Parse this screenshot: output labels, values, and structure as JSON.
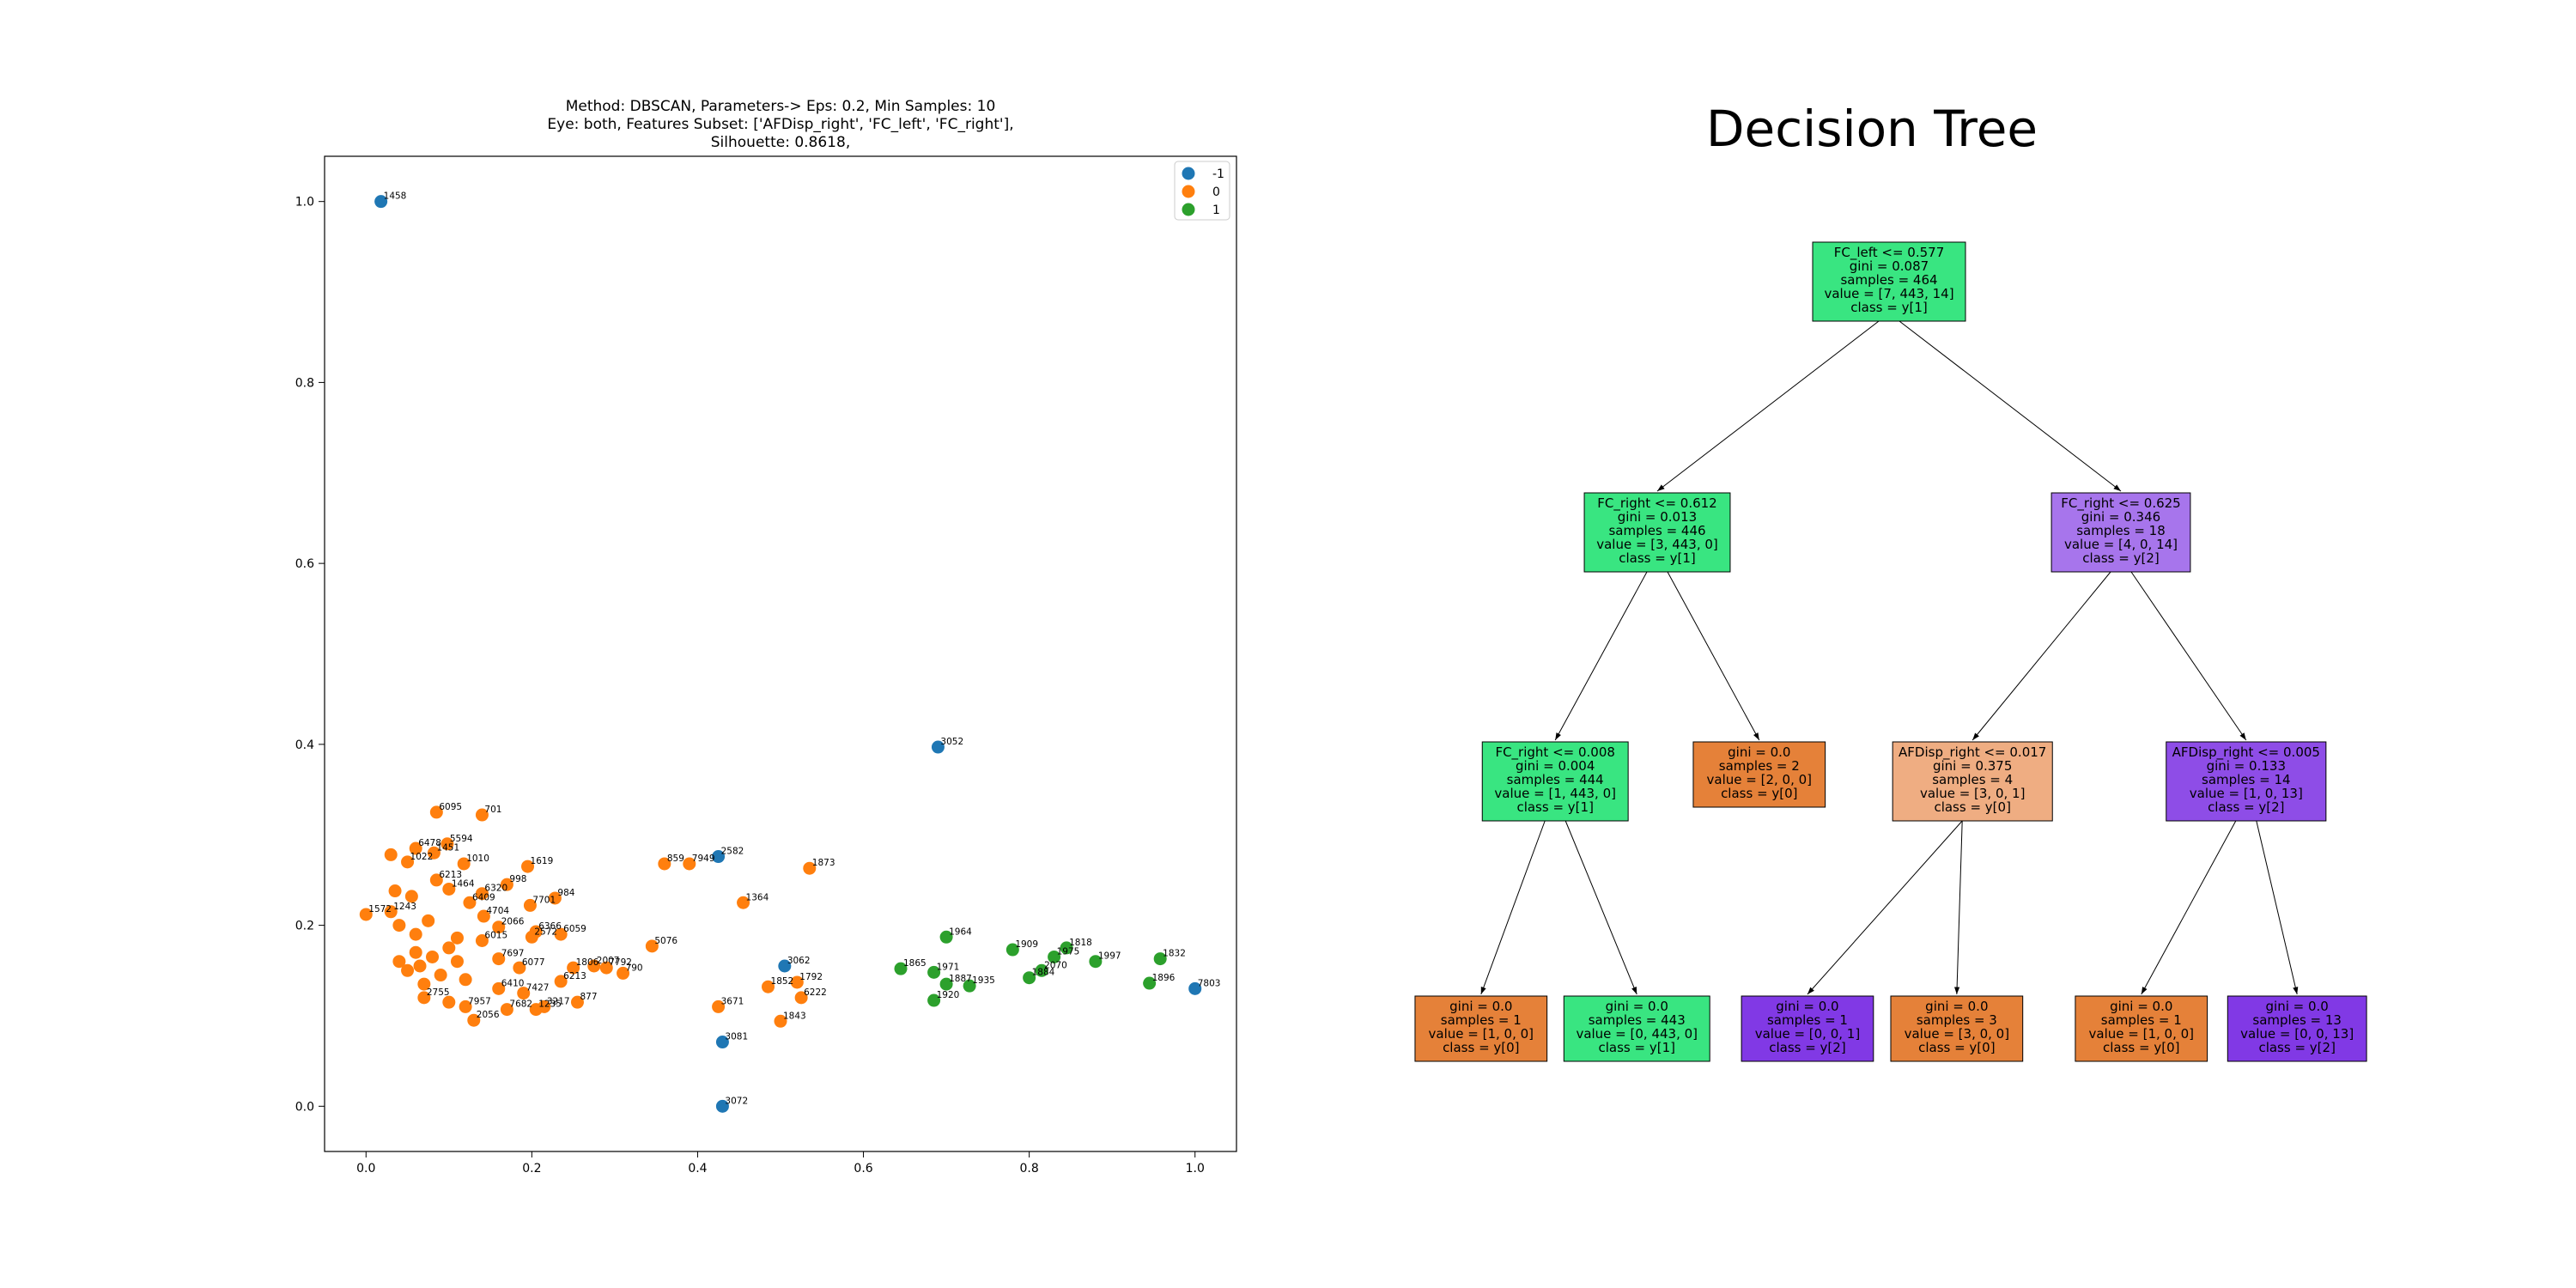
{
  "colors": {
    "cluster_-1": "#1f77b4",
    "cluster_0": "#ff7f0e",
    "cluster_1": "#2ca02c",
    "class_y0": "#e58139",
    "class_y1": "#39e581",
    "class_y2": "#8139e5",
    "class_y0_light": "#efad82",
    "class_y2_light": "#a775ec",
    "class_y1_light": "#39e57f"
  },
  "chart_data": [
    {
      "type": "scatter",
      "title_lines": [
        "Method: DBSCAN, Parameters-> Eps: 0.2, Min Samples: 10",
        "Eye: both, Features Subset: ['AFDisp_right', 'FC_left', 'FC_right'],",
        "Silhouette: 0.8618,"
      ],
      "xlim": [
        -0.05,
        1.05
      ],
      "ylim": [
        -0.05,
        1.05
      ],
      "xticks": [
        "0.0",
        "0.2",
        "0.4",
        "0.6",
        "0.8",
        "1.0"
      ],
      "yticks": [
        "0.0",
        "0.2",
        "0.4",
        "0.6",
        "0.8",
        "1.0"
      ],
      "legend_position": "top-right",
      "legend": [
        {
          "label": "-1",
          "cluster": "-1"
        },
        {
          "label": "0",
          "cluster": "0"
        },
        {
          "label": "1",
          "cluster": "1"
        }
      ],
      "points": [
        {
          "x": 0.018,
          "y": 1.0,
          "cluster": "-1",
          "label": "1458"
        },
        {
          "x": 0.69,
          "y": 0.397,
          "cluster": "-1",
          "label": "3052"
        },
        {
          "x": 0.425,
          "y": 0.276,
          "cluster": "-1",
          "label": "2582"
        },
        {
          "x": 0.505,
          "y": 0.155,
          "cluster": "-1",
          "label": "3062"
        },
        {
          "x": 1.0,
          "y": 0.13,
          "cluster": "-1",
          "label": "7803"
        },
        {
          "x": 0.43,
          "y": 0.071,
          "cluster": "-1",
          "label": "3081"
        },
        {
          "x": 0.43,
          "y": 0.0,
          "cluster": "-1",
          "label": "3072"
        },
        {
          "x": 0.085,
          "y": 0.325,
          "cluster": "0",
          "label": "6095"
        },
        {
          "x": 0.14,
          "y": 0.322,
          "cluster": "0",
          "label": "701"
        },
        {
          "x": 0.098,
          "y": 0.29,
          "cluster": "0",
          "label": "5594"
        },
        {
          "x": 0.082,
          "y": 0.28,
          "cluster": "0",
          "label": "1451"
        },
        {
          "x": 0.06,
          "y": 0.285,
          "cluster": "0",
          "label": "6478"
        },
        {
          "x": 0.03,
          "y": 0.278,
          "cluster": "0",
          "label": ""
        },
        {
          "x": 0.05,
          "y": 0.27,
          "cluster": "0",
          "label": "1022"
        },
        {
          "x": 0.118,
          "y": 0.268,
          "cluster": "0",
          "label": "1010"
        },
        {
          "x": 0.195,
          "y": 0.265,
          "cluster": "0",
          "label": "1619"
        },
        {
          "x": 0.085,
          "y": 0.25,
          "cluster": "0",
          "label": "6213"
        },
        {
          "x": 0.17,
          "y": 0.245,
          "cluster": "0",
          "label": "998"
        },
        {
          "x": 0.1,
          "y": 0.24,
          "cluster": "0",
          "label": "1464"
        },
        {
          "x": 0.035,
          "y": 0.238,
          "cluster": "0",
          "label": ""
        },
        {
          "x": 0.14,
          "y": 0.235,
          "cluster": "0",
          "label": "6320"
        },
        {
          "x": 0.228,
          "y": 0.23,
          "cluster": "0",
          "label": "984"
        },
        {
          "x": 0.055,
          "y": 0.232,
          "cluster": "0",
          "label": ""
        },
        {
          "x": 0.125,
          "y": 0.225,
          "cluster": "0",
          "label": "6409"
        },
        {
          "x": 0.198,
          "y": 0.222,
          "cluster": "0",
          "label": "7701"
        },
        {
          "x": 0.0,
          "y": 0.212,
          "cluster": "0",
          "label": "1572"
        },
        {
          "x": 0.03,
          "y": 0.215,
          "cluster": "0",
          "label": "1243"
        },
        {
          "x": 0.142,
          "y": 0.21,
          "cluster": "0",
          "label": "4704"
        },
        {
          "x": 0.075,
          "y": 0.205,
          "cluster": "0",
          "label": ""
        },
        {
          "x": 0.16,
          "y": 0.198,
          "cluster": "0",
          "label": "2066"
        },
        {
          "x": 0.205,
          "y": 0.193,
          "cluster": "0",
          "label": "6366"
        },
        {
          "x": 0.235,
          "y": 0.19,
          "cluster": "0",
          "label": "6059"
        },
        {
          "x": 0.2,
          "y": 0.187,
          "cluster": "0",
          "label": "2572"
        },
        {
          "x": 0.14,
          "y": 0.183,
          "cluster": "0",
          "label": "6015"
        },
        {
          "x": 0.11,
          "y": 0.186,
          "cluster": "0",
          "label": ""
        },
        {
          "x": 0.345,
          "y": 0.177,
          "cluster": "0",
          "label": "5076"
        },
        {
          "x": 0.06,
          "y": 0.19,
          "cluster": "0",
          "label": ""
        },
        {
          "x": 0.04,
          "y": 0.2,
          "cluster": "0",
          "label": ""
        },
        {
          "x": 0.16,
          "y": 0.163,
          "cluster": "0",
          "label": "7697"
        },
        {
          "x": 0.185,
          "y": 0.153,
          "cluster": "0",
          "label": "6077"
        },
        {
          "x": 0.25,
          "y": 0.153,
          "cluster": "0",
          "label": "1806"
        },
        {
          "x": 0.275,
          "y": 0.155,
          "cluster": "0",
          "label": "2007"
        },
        {
          "x": 0.29,
          "y": 0.153,
          "cluster": "0",
          "label": "7792"
        },
        {
          "x": 0.31,
          "y": 0.147,
          "cluster": "0",
          "label": "790"
        },
        {
          "x": 0.235,
          "y": 0.138,
          "cluster": "0",
          "label": "6213"
        },
        {
          "x": 0.19,
          "y": 0.125,
          "cluster": "0",
          "label": "7427"
        },
        {
          "x": 0.16,
          "y": 0.13,
          "cluster": "0",
          "label": "6410"
        },
        {
          "x": 0.255,
          "y": 0.115,
          "cluster": "0",
          "label": "877"
        },
        {
          "x": 0.215,
          "y": 0.11,
          "cluster": "0",
          "label": "3217"
        },
        {
          "x": 0.205,
          "y": 0.107,
          "cluster": "0",
          "label": "1235"
        },
        {
          "x": 0.17,
          "y": 0.107,
          "cluster": "0",
          "label": "7682"
        },
        {
          "x": 0.12,
          "y": 0.11,
          "cluster": "0",
          "label": "7957"
        },
        {
          "x": 0.13,
          "y": 0.095,
          "cluster": "0",
          "label": "2056"
        },
        {
          "x": 0.07,
          "y": 0.12,
          "cluster": "0",
          "label": "2755"
        },
        {
          "x": 0.1,
          "y": 0.115,
          "cluster": "0",
          "label": ""
        },
        {
          "x": 0.36,
          "y": 0.268,
          "cluster": "0",
          "label": "859"
        },
        {
          "x": 0.39,
          "y": 0.268,
          "cluster": "0",
          "label": "7949"
        },
        {
          "x": 0.535,
          "y": 0.263,
          "cluster": "0",
          "label": "1873"
        },
        {
          "x": 0.455,
          "y": 0.225,
          "cluster": "0",
          "label": "1364"
        },
        {
          "x": 0.52,
          "y": 0.137,
          "cluster": "0",
          "label": "1792"
        },
        {
          "x": 0.485,
          "y": 0.132,
          "cluster": "0",
          "label": "1852"
        },
        {
          "x": 0.525,
          "y": 0.12,
          "cluster": "0",
          "label": "6222"
        },
        {
          "x": 0.425,
          "y": 0.11,
          "cluster": "0",
          "label": "3671"
        },
        {
          "x": 0.5,
          "y": 0.094,
          "cluster": "0",
          "label": "1843"
        },
        {
          "x": 0.06,
          "y": 0.17,
          "cluster": "0",
          "label": ""
        },
        {
          "x": 0.08,
          "y": 0.165,
          "cluster": "0",
          "label": ""
        },
        {
          "x": 0.05,
          "y": 0.15,
          "cluster": "0",
          "label": ""
        },
        {
          "x": 0.09,
          "y": 0.145,
          "cluster": "0",
          "label": ""
        },
        {
          "x": 0.11,
          "y": 0.16,
          "cluster": "0",
          "label": ""
        },
        {
          "x": 0.07,
          "y": 0.135,
          "cluster": "0",
          "label": ""
        },
        {
          "x": 0.04,
          "y": 0.16,
          "cluster": "0",
          "label": ""
        },
        {
          "x": 0.1,
          "y": 0.175,
          "cluster": "0",
          "label": ""
        },
        {
          "x": 0.12,
          "y": 0.14,
          "cluster": "0",
          "label": ""
        },
        {
          "x": 0.065,
          "y": 0.155,
          "cluster": "0",
          "label": ""
        },
        {
          "x": 0.7,
          "y": 0.187,
          "cluster": "1",
          "label": "1964"
        },
        {
          "x": 0.78,
          "y": 0.173,
          "cluster": "1",
          "label": "1909"
        },
        {
          "x": 0.845,
          "y": 0.175,
          "cluster": "1",
          "label": "1818"
        },
        {
          "x": 0.83,
          "y": 0.165,
          "cluster": "1",
          "label": "1975"
        },
        {
          "x": 0.88,
          "y": 0.16,
          "cluster": "1",
          "label": "1997"
        },
        {
          "x": 0.958,
          "y": 0.163,
          "cluster": "1",
          "label": "1832"
        },
        {
          "x": 0.645,
          "y": 0.152,
          "cluster": "1",
          "label": "1865"
        },
        {
          "x": 0.685,
          "y": 0.148,
          "cluster": "1",
          "label": "1971"
        },
        {
          "x": 0.815,
          "y": 0.15,
          "cluster": "1",
          "label": "2070"
        },
        {
          "x": 0.8,
          "y": 0.142,
          "cluster": "1",
          "label": "1884"
        },
        {
          "x": 0.7,
          "y": 0.135,
          "cluster": "1",
          "label": "1887"
        },
        {
          "x": 0.728,
          "y": 0.133,
          "cluster": "1",
          "label": "1935"
        },
        {
          "x": 0.945,
          "y": 0.136,
          "cluster": "1",
          "label": "1896"
        },
        {
          "x": 0.685,
          "y": 0.117,
          "cluster": "1",
          "label": "1920"
        }
      ]
    },
    {
      "type": "tree",
      "title": "Decision Tree",
      "nodes": [
        {
          "id": "n0",
          "depth": 0,
          "col": 0.5,
          "lines": [
            "FC_left <= 0.577",
            "gini = 0.087",
            "samples = 464",
            "value = [7, 443, 14]",
            "class = y[1]"
          ],
          "color": "#39e581",
          "children": [
            "n1",
            "n2"
          ]
        },
        {
          "id": "n1",
          "depth": 1,
          "col": 0.25,
          "lines": [
            "FC_right <= 0.612",
            "gini = 0.013",
            "samples = 446",
            "value = [3, 443, 0]",
            "class = y[1]"
          ],
          "color": "#39e581",
          "children": [
            "n3",
            "n4"
          ]
        },
        {
          "id": "n2",
          "depth": 1,
          "col": 0.75,
          "lines": [
            "FC_right <= 0.625",
            "gini = 0.346",
            "samples = 18",
            "value = [4, 0, 14]",
            "class = y[2]"
          ],
          "color": "#a775ec",
          "children": [
            "n5",
            "n6"
          ]
        },
        {
          "id": "n3",
          "depth": 2,
          "col": 0.14,
          "lines": [
            "FC_right <= 0.008",
            "gini = 0.004",
            "samples = 444",
            "value = [1, 443, 0]",
            "class = y[1]"
          ],
          "color": "#39e581",
          "children": [
            "n7",
            "n8"
          ]
        },
        {
          "id": "n4",
          "depth": 2,
          "col": 0.36,
          "lines": [
            "gini = 0.0",
            "samples = 2",
            "value = [2, 0, 0]",
            "class = y[0]"
          ],
          "color": "#e58139",
          "children": []
        },
        {
          "id": "n5",
          "depth": 2,
          "col": 0.59,
          "lines": [
            "AFDisp_right <= 0.017",
            "gini = 0.375",
            "samples = 4",
            "value = [3, 0, 1]",
            "class = y[0]"
          ],
          "color": "#efad82",
          "children": [
            "n9",
            "n10"
          ]
        },
        {
          "id": "n6",
          "depth": 2,
          "col": 0.885,
          "lines": [
            "AFDisp_right <= 0.005",
            "gini = 0.133",
            "samples = 14",
            "value = [1, 0, 13]",
            "class = y[2]"
          ],
          "color": "#8e4de7",
          "children": [
            "n11",
            "n12"
          ]
        },
        {
          "id": "n7",
          "depth": 3,
          "col": 0.06,
          "lines": [
            "gini = 0.0",
            "samples = 1",
            "value = [1, 0, 0]",
            "class = y[0]"
          ],
          "color": "#e58139",
          "children": []
        },
        {
          "id": "n8",
          "depth": 3,
          "col": 0.228,
          "lines": [
            "gini = 0.0",
            "samples = 443",
            "value = [0, 443, 0]",
            "class = y[1]"
          ],
          "color": "#39e581",
          "children": []
        },
        {
          "id": "n9",
          "depth": 3,
          "col": 0.412,
          "lines": [
            "gini = 0.0",
            "samples = 1",
            "value = [0, 0, 1]",
            "class = y[2]"
          ],
          "color": "#8139e5",
          "children": []
        },
        {
          "id": "n10",
          "depth": 3,
          "col": 0.573,
          "lines": [
            "gini = 0.0",
            "samples = 3",
            "value = [3, 0, 0]",
            "class = y[0]"
          ],
          "color": "#e58139",
          "children": []
        },
        {
          "id": "n11",
          "depth": 3,
          "col": 0.772,
          "lines": [
            "gini = 0.0",
            "samples = 1",
            "value = [1, 0, 0]",
            "class = y[0]"
          ],
          "color": "#e58139",
          "children": []
        },
        {
          "id": "n12",
          "depth": 3,
          "col": 0.94,
          "lines": [
            "gini = 0.0",
            "samples = 13",
            "value = [0, 0, 13]",
            "class = y[2]"
          ],
          "color": "#8139e5",
          "children": []
        }
      ]
    }
  ]
}
